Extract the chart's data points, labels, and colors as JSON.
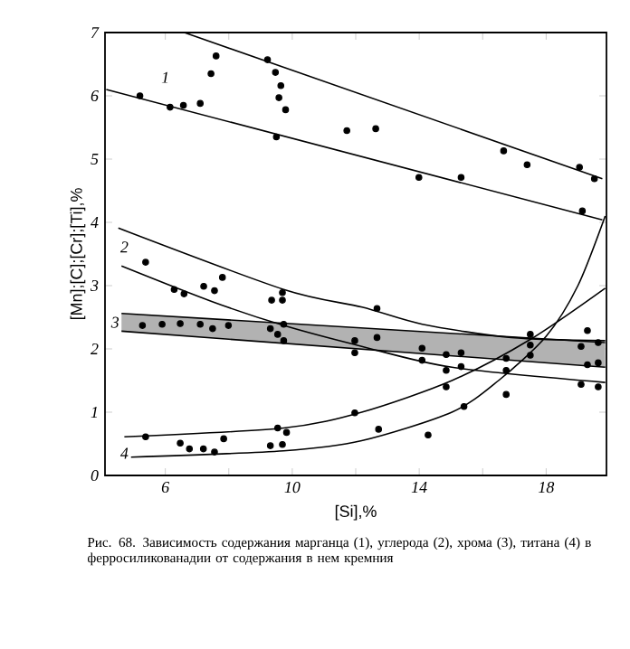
{
  "chart_data": {
    "type": "scatter",
    "xlabel": "[Si],%",
    "ylabel": "[Mn];[C];[Cr];[Ti],%",
    "xlim": [
      4.1,
      19.9
    ],
    "ylim": [
      0,
      7
    ],
    "xticks": [
      6,
      {
        "value": 8,
        "label": null
      },
      10,
      {
        "value": 12,
        "label": null
      },
      14,
      {
        "value": 16,
        "label": null
      },
      18
    ],
    "yticks": [
      0,
      1,
      2,
      3,
      4,
      5,
      6,
      7
    ],
    "annotations": [
      "1",
      "2",
      "3",
      "4",
      "Рис. 68. Зависимость содержания марганца (1), углерода (2), хрома (3), титана (4) в ферросиликованадии от содержания в нем кремния"
    ],
    "series": [
      {
        "marker": "circle",
        "color": "#000000",
        "x": [
          5.2,
          6.15,
          6.57,
          7.1,
          7.44,
          7.6,
          9.22,
          9.47,
          9.64,
          9.58,
          9.79,
          9.5,
          11.72,
          12.63,
          13.99,
          15.32,
          16.66,
          17.4,
          19.05,
          19.52,
          19.14
        ],
        "values": [
          6.0,
          5.82,
          5.85,
          5.88,
          6.35,
          6.63,
          6.57,
          6.37,
          6.16,
          5.97,
          5.78,
          5.35,
          5.45,
          5.48,
          4.71,
          4.71,
          5.13,
          4.91,
          4.87,
          4.69,
          4.18
        ]
      },
      {
        "type": "line",
        "color": "#000000",
        "x": [
          6.6,
          19.77
        ],
        "values": [
          7.0,
          4.69
        ]
      },
      {
        "type": "line",
        "color": "#000000",
        "x": [
          4.14,
          19.77
        ],
        "values": [
          6.1,
          4.04
        ]
      },
      {
        "marker": "circle",
        "color": "#000000",
        "x": [
          5.38,
          6.28,
          6.59,
          7.21,
          7.55,
          7.8,
          9.35,
          9.69,
          9.69,
          9.73,
          12.67,
          14.85,
          15.32,
          17.5,
          17.5,
          16.74,
          19.1,
          19.64
        ],
        "values": [
          3.37,
          2.94,
          2.87,
          2.99,
          2.92,
          3.13,
          2.77,
          2.77,
          2.89,
          2.39,
          2.64,
          1.66,
          1.72,
          2.23,
          2.06,
          1.66,
          1.44,
          1.4
        ]
      },
      {
        "type": "line",
        "color": "#000000",
        "x": [
          4.52,
          9.73,
          12.2,
          14.1,
          16.9,
          19.86
        ],
        "values": [
          3.91,
          2.94,
          2.66,
          2.39,
          2.18,
          2.13
        ]
      },
      {
        "type": "line",
        "color": "#000000",
        "x": [
          4.62,
          7.46,
          9.73,
          12.19,
          15.03,
          19.86
        ],
        "values": [
          3.31,
          2.75,
          2.37,
          2.04,
          1.71,
          1.47
        ]
      },
      {
        "type": "line",
        "color": "#000000",
        "x": [
          4.62,
          19.86
        ],
        "values": [
          null,
          null
        ],
        "lower": [
          2.28,
          1.71
        ],
        "upper": [
          2.56,
          2.1
        ]
      },
      {
        "marker": "circle",
        "color": "#000000",
        "x": [
          5.28,
          5.9,
          6.47,
          7.1,
          7.49,
          7.99,
          9.31,
          9.54,
          9.73,
          11.97,
          12.67,
          11.97,
          14.09,
          14.09,
          15.32,
          14.85,
          16.74,
          17.5,
          19.1,
          19.3,
          19.3,
          19.64,
          19.64
        ],
        "values": [
          2.37,
          2.39,
          2.4,
          2.39,
          2.32,
          2.37,
          2.32,
          2.23,
          2.13,
          2.13,
          2.18,
          1.94,
          2.01,
          1.82,
          1.94,
          1.91,
          1.85,
          1.9,
          2.04,
          2.29,
          1.75,
          2.1,
          1.78
        ]
      },
      {
        "marker": "circle",
        "color": "#000000",
        "x": [
          5.38,
          6.47,
          6.76,
          7.2,
          7.55,
          7.84,
          9.31,
          9.69,
          9.54,
          9.82,
          11.97,
          12.72,
          14.28,
          14.85,
          15.41,
          16.74
        ],
        "values": [
          0.61,
          0.51,
          0.42,
          0.42,
          0.37,
          0.58,
          0.47,
          0.49,
          0.75,
          0.68,
          0.99,
          0.73,
          0.64,
          1.4,
          1.09,
          1.28
        ]
      },
      {
        "type": "line",
        "color": "#000000",
        "x": [
          4.71,
          9.73,
          12.19,
          15.03,
          17.5,
          19.86
        ],
        "values": [
          0.61,
          0.75,
          1.0,
          1.5,
          2.15,
          2.96
        ]
      },
      {
        "type": "line",
        "color": "#000000",
        "x": [
          4.92,
          9.73,
          12.19,
          15.03,
          16.5,
          18.0,
          19.0,
          19.86
        ],
        "values": [
          0.29,
          0.39,
          0.55,
          1.0,
          1.5,
          2.2,
          3.0,
          4.1
        ]
      }
    ]
  }
}
